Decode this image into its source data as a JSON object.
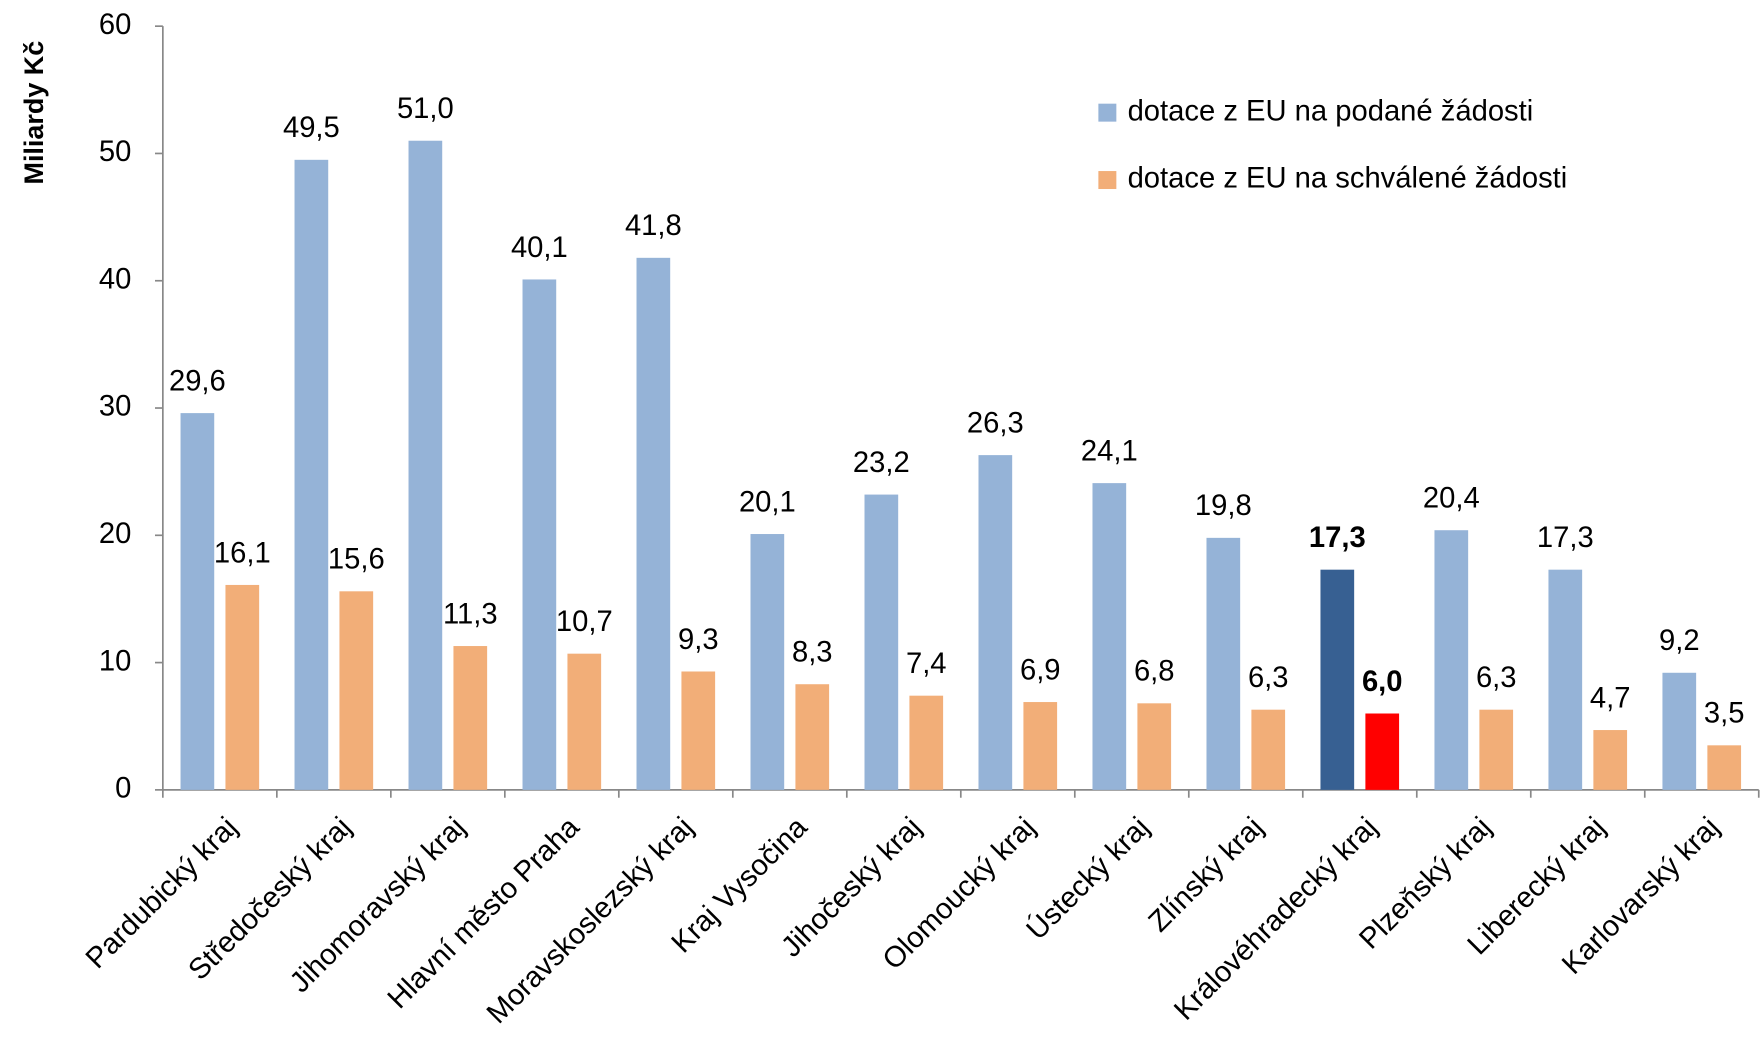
{
  "chart_data": {
    "type": "bar",
    "y_label": "Miliardy Kč",
    "categories": [
      "Pardubický kraj",
      "Středočeský kraj",
      "Jihomoravský kraj",
      "Hlavní město Praha",
      "Moravskoslezský kraj",
      "Kraj Vysočina",
      "Jihočeský kraj",
      "Olomoucký kraj",
      "Ústecký kraj",
      "Zlínský kraj",
      "Královéhradecký kraj",
      "Plzeňský kraj",
      "Liberecký kraj",
      "Karlovarský kraj"
    ],
    "series": [
      {
        "name": "dotace z EU na podané žádosti",
        "color": "#95b3d7",
        "colors": [
          "#95b3d7",
          "#95b3d7",
          "#95b3d7",
          "#95b3d7",
          "#95b3d7",
          "#95b3d7",
          "#95b3d7",
          "#95b3d7",
          "#95b3d7",
          "#95b3d7",
          "#376092",
          "#95b3d7",
          "#95b3d7",
          "#95b3d7"
        ],
        "values": [
          29.6,
          49.5,
          51.0,
          40.1,
          41.8,
          20.1,
          23.2,
          26.3,
          24.1,
          19.8,
          17.3,
          20.4,
          17.3,
          9.2
        ],
        "value_labels": [
          "29,6",
          "49,5",
          "51,0",
          "40,1",
          "41,8",
          "20,1",
          "23,2",
          "26,3",
          "24,1",
          "19,8",
          "17,3",
          "20,4",
          "17,3",
          "9,2"
        ]
      },
      {
        "name": "dotace z EU na schválené žádosti",
        "color": "#f2ae78",
        "colors": [
          "#f2ae78",
          "#f2ae78",
          "#f2ae78",
          "#f2ae78",
          "#f2ae78",
          "#f2ae78",
          "#f2ae78",
          "#f2ae78",
          "#f2ae78",
          "#f2ae78",
          "#ff0000",
          "#f2ae78",
          "#f2ae78",
          "#f2ae78"
        ],
        "values": [
          16.1,
          15.6,
          11.3,
          10.7,
          9.3,
          8.3,
          7.4,
          6.9,
          6.8,
          6.3,
          6.0,
          6.3,
          4.7,
          3.5
        ],
        "value_labels": [
          "16,1",
          "15,6",
          "11,3",
          "10,7",
          "9,3",
          "8,3",
          "7,4",
          "6,9",
          "6,8",
          "6,3",
          "6,0",
          "6,3",
          "4,7",
          "3,5"
        ]
      }
    ],
    "ylim": [
      0,
      60
    ],
    "yticks": [
      0,
      10,
      20,
      30,
      40,
      50,
      60
    ],
    "grid": false,
    "legend": "top-right"
  }
}
